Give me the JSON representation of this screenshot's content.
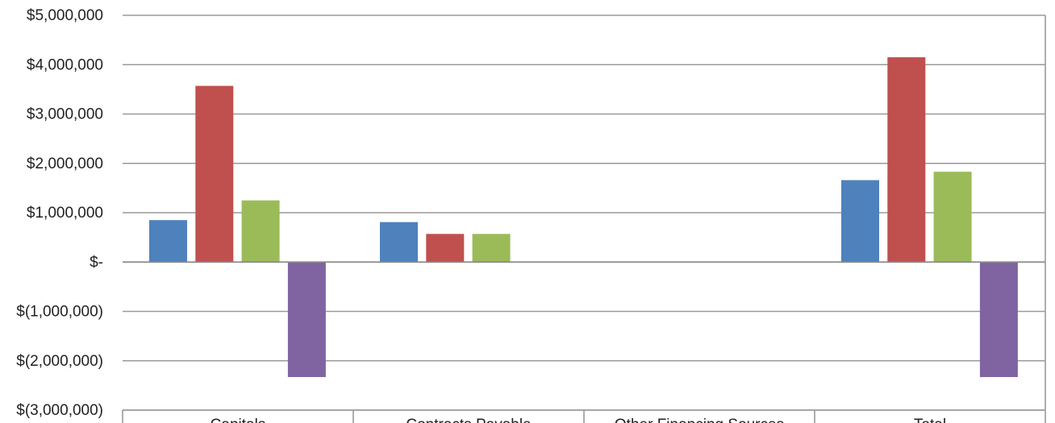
{
  "chart_data": {
    "type": "bar",
    "title": "",
    "xlabel": "",
    "ylabel": "",
    "categories": [
      "Capitals",
      "Contracts Payable",
      "Other Financing Sources",
      "Total"
    ],
    "series": [
      {
        "color": "#4f81bd",
        "values": [
          850000,
          810000,
          0,
          1660000
        ]
      },
      {
        "color": "#c0504d",
        "values": [
          3570000,
          570000,
          0,
          4150000
        ]
      },
      {
        "color": "#9bbb59",
        "values": [
          1250000,
          570000,
          0,
          1830000
        ]
      },
      {
        "color": "#8064a2",
        "values": [
          -2330000,
          0,
          0,
          -2330000
        ]
      }
    ],
    "ylim": [
      -3000000,
      5000000
    ],
    "yticks": [
      5000000,
      4000000,
      3000000,
      2000000,
      1000000,
      0,
      -1000000,
      -2000000,
      -3000000
    ],
    "ytick_labels": [
      "$5,000,000",
      "$4,000,000",
      "$3,000,000",
      "$2,000,000",
      "$1,000,000",
      "$-",
      "$(1,000,000)",
      "$(2,000,000)",
      "$(3,000,000)"
    ],
    "grid": true,
    "legend": "none"
  }
}
